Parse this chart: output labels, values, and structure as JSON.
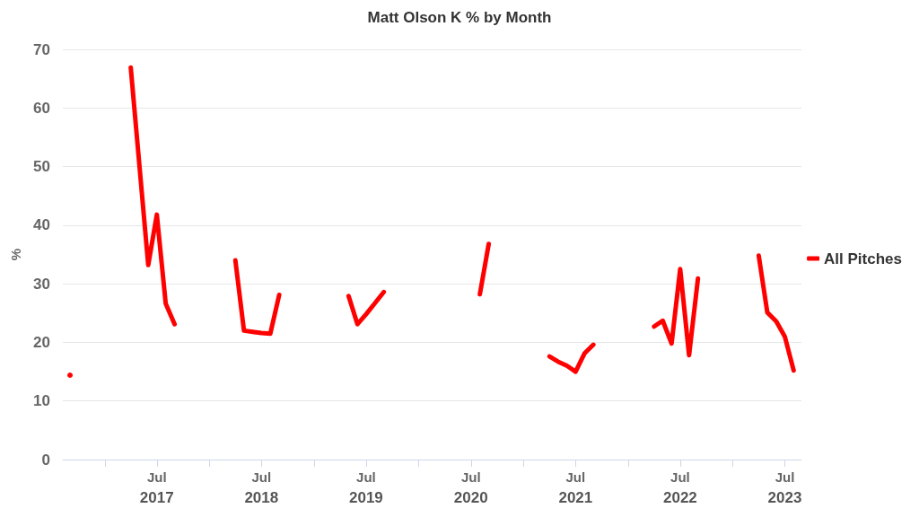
{
  "chart_data": {
    "type": "line",
    "title": "Matt Olson K % by Month",
    "ylabel": "%",
    "x": [
      "2016-09-01",
      "2016-10-01",
      "2017-04-01",
      "2017-06-01",
      "2017-07-01",
      "2017-08-01",
      "2017-09-01",
      "2017-10-01",
      "2018-04-01",
      "2018-05-01",
      "2018-06-01",
      "2018-07-01",
      "2018-08-01",
      "2018-09-01",
      "2018-10-01",
      "2019-05-01",
      "2019-06-01",
      "2019-07-01",
      "2019-08-01",
      "2019-09-01",
      "2019-10-01",
      "2020-08-01",
      "2020-09-01",
      "2020-10-01",
      "2021-04-01",
      "2021-05-01",
      "2021-06-01",
      "2021-07-01",
      "2021-08-01",
      "2021-09-01",
      "2021-10-01",
      "2022-04-01",
      "2022-05-01",
      "2022-06-01",
      "2022-07-01",
      "2022-08-01",
      "2022-09-01",
      "2022-10-01",
      "2023-04-01",
      "2023-05-01",
      "2023-06-01",
      "2023-07-01",
      "2023-08-01"
    ],
    "series": [
      {
        "name": "All Pitches",
        "color": "#ff0000",
        "values": [
          14.4,
          null,
          66.9,
          33.2,
          41.8,
          26.6,
          23.1,
          null,
          34.0,
          22.0,
          21.8,
          21.6,
          21.5,
          28.1,
          null,
          27.9,
          23.1,
          24.8,
          26.7,
          28.6,
          null,
          28.2,
          36.8,
          null,
          17.6,
          16.7,
          16.0,
          15.0,
          18.1,
          19.6,
          null,
          22.7,
          23.7,
          19.8,
          32.5,
          17.8,
          30.9,
          null,
          34.8,
          25.1,
          23.6,
          21.0,
          15.2
        ]
      }
    ],
    "xlim": [
      "2016-08-07",
      "2023-08-28"
    ],
    "xticks": [
      {
        "value": "2017-01-01",
        "label": null
      },
      {
        "value": "2017-07-01",
        "label": "Jul\n2017"
      },
      {
        "value": "2018-01-01",
        "label": null
      },
      {
        "value": "2018-07-01",
        "label": "Jul\n2018"
      },
      {
        "value": "2019-01-01",
        "label": null
      },
      {
        "value": "2019-07-01",
        "label": "Jul\n2019"
      },
      {
        "value": "2020-01-01",
        "label": null
      },
      {
        "value": "2020-07-01",
        "label": "Jul\n2020"
      },
      {
        "value": "2021-01-01",
        "label": null
      },
      {
        "value": "2021-07-01",
        "label": "Jul\n2021"
      },
      {
        "value": "2022-01-01",
        "label": null
      },
      {
        "value": "2022-07-01",
        "label": "Jul\n2022"
      },
      {
        "value": "2023-01-01",
        "label": null
      },
      {
        "value": "2023-07-01",
        "label": "Jul\n2023"
      }
    ],
    "ylim": [
      0,
      70
    ],
    "yticks": [
      0,
      10,
      20,
      30,
      40,
      50,
      60,
      70
    ],
    "grid": "y",
    "legend": "right",
    "marker": "none",
    "line_style": "solid"
  }
}
